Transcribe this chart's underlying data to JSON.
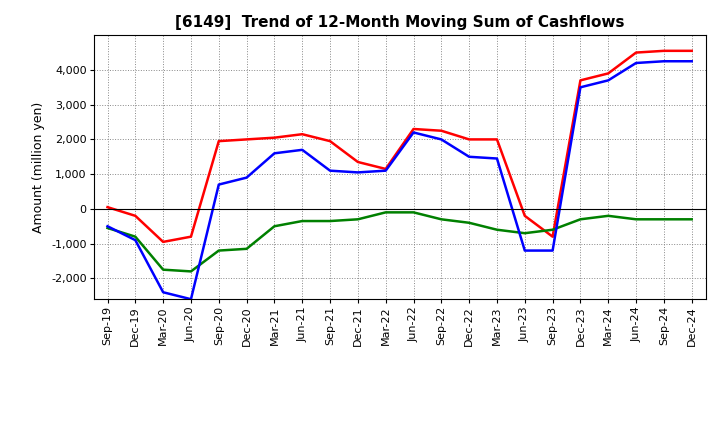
{
  "title": "[6149]  Trend of 12-Month Moving Sum of Cashflows",
  "ylabel": "Amount (million yen)",
  "ylim": [
    -2600,
    5000
  ],
  "yticks": [
    -2000,
    -1000,
    0,
    1000,
    2000,
    3000,
    4000
  ],
  "background_color": "#ffffff",
  "grid_color": "#888888",
  "x_labels": [
    "Sep-19",
    "Dec-19",
    "Mar-20",
    "Jun-20",
    "Sep-20",
    "Dec-20",
    "Mar-21",
    "Jun-21",
    "Sep-21",
    "Dec-21",
    "Mar-22",
    "Jun-22",
    "Sep-22",
    "Dec-22",
    "Mar-23",
    "Jun-23",
    "Sep-23",
    "Dec-23",
    "Mar-24",
    "Jun-24",
    "Sep-24",
    "Dec-24"
  ],
  "operating_cashflow": [
    50,
    -200,
    -950,
    -800,
    1950,
    2000,
    2050,
    2150,
    1950,
    1350,
    1150,
    2300,
    2250,
    2000,
    2000,
    -200,
    -800,
    3700,
    3900,
    4500,
    4550,
    4550
  ],
  "investing_cashflow": [
    -550,
    -800,
    -1750,
    -1800,
    -1200,
    -1150,
    -500,
    -350,
    -350,
    -300,
    -100,
    -100,
    -300,
    -400,
    -600,
    -700,
    -600,
    -300,
    -200,
    -300,
    -300,
    -300
  ],
  "free_cashflow": [
    -500,
    -900,
    -2400,
    -2600,
    700,
    900,
    1600,
    1700,
    1100,
    1050,
    1100,
    2200,
    2000,
    1500,
    1450,
    -1200,
    -1200,
    3500,
    3700,
    4200,
    4250,
    4250
  ],
  "operating_color": "#ff0000",
  "investing_color": "#008000",
  "free_color": "#0000ff",
  "line_width": 1.8,
  "title_fontsize": 11,
  "ylabel_fontsize": 9,
  "tick_fontsize": 8
}
